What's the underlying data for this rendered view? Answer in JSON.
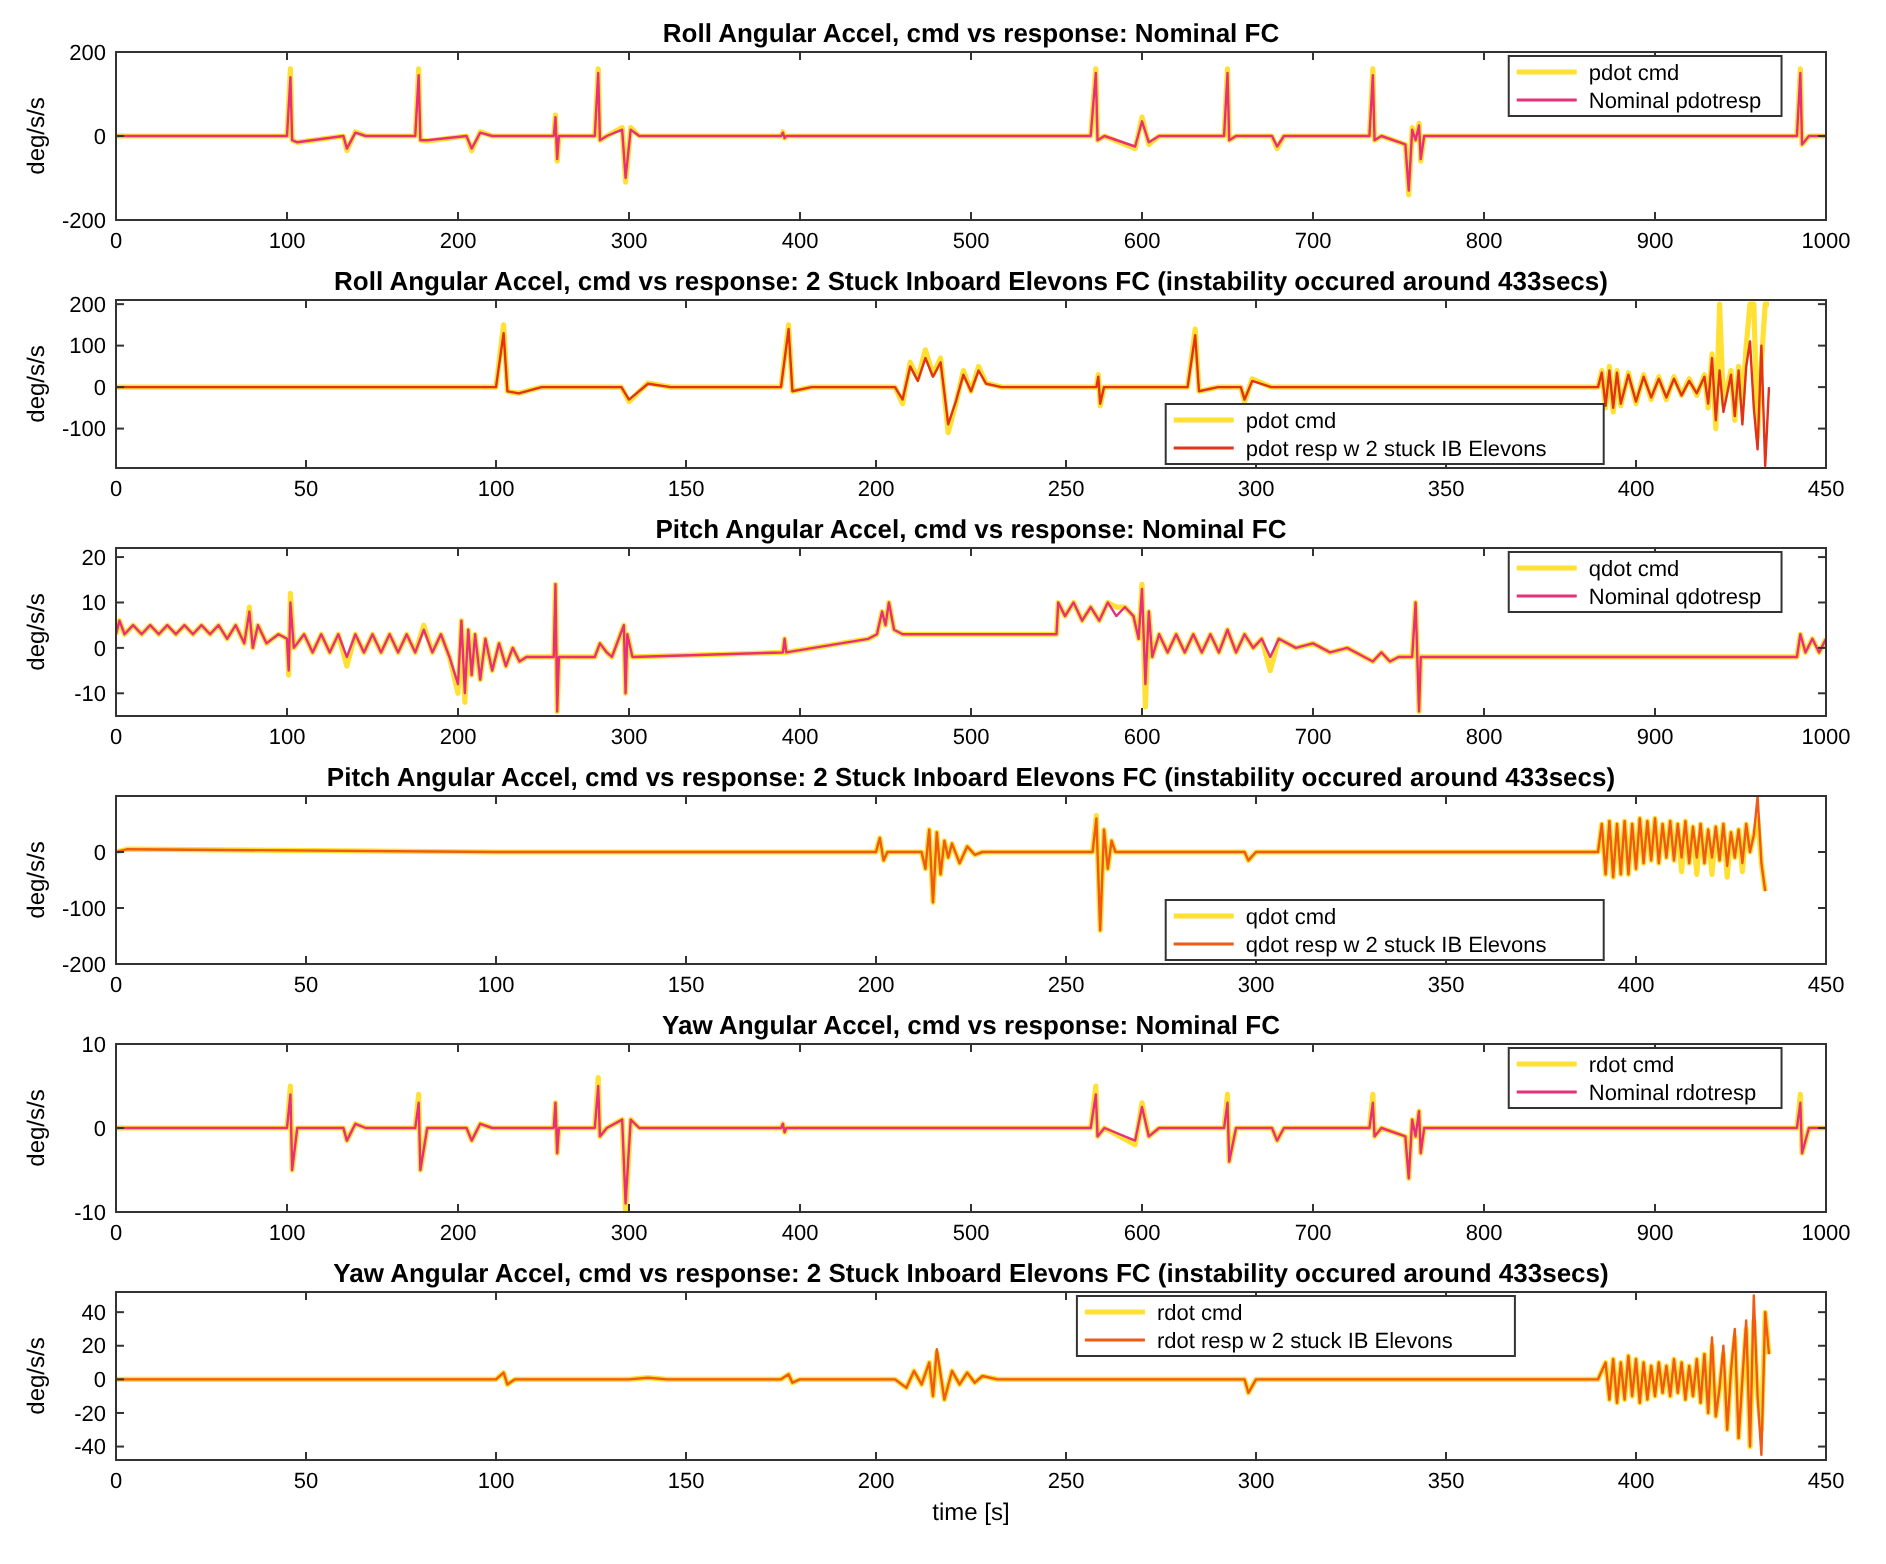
{
  "chart_data": [
    {
      "type": "line",
      "title": "Roll Angular Accel, cmd vs response: Nominal FC",
      "ylabel": "deg/s/s",
      "xlim": [
        0,
        1000
      ],
      "xticks": [
        0,
        100,
        200,
        300,
        400,
        500,
        600,
        700,
        800,
        900,
        1000
      ],
      "ylim": [
        -200,
        200
      ],
      "yticks": [
        -200,
        0,
        200
      ],
      "legend": "top right",
      "x": [
        0,
        100,
        102,
        103,
        106,
        133,
        135,
        140,
        146,
        175,
        177,
        178,
        182,
        205,
        208,
        213,
        220,
        256,
        257,
        258,
        259,
        280,
        282,
        283,
        287,
        296,
        298,
        301,
        306,
        389,
        390,
        391,
        392,
        570,
        573,
        574,
        578,
        596,
        600,
        604,
        610,
        648,
        650,
        651,
        655,
        676,
        679,
        683,
        733,
        735,
        736,
        740,
        754,
        756,
        758,
        760,
        762,
        763,
        765,
        983,
        985,
        986,
        990,
        1000
      ],
      "series": [
        {
          "name": "pdot cmd",
          "color": "#ffe033",
          "values": [
            0,
            0,
            160,
            -10,
            -15,
            0,
            -35,
            10,
            0,
            0,
            160,
            -10,
            -12,
            0,
            -35,
            10,
            0,
            0,
            50,
            -60,
            0,
            0,
            160,
            -10,
            0,
            20,
            -110,
            20,
            0,
            0,
            10,
            -5,
            0,
            0,
            160,
            -10,
            0,
            -30,
            45,
            -20,
            0,
            0,
            160,
            -10,
            0,
            0,
            -30,
            0,
            0,
            160,
            -10,
            0,
            -20,
            -140,
            20,
            -10,
            30,
            -60,
            0,
            0,
            160,
            -20,
            0,
            0
          ]
        },
        {
          "name": "Nominal pdotresp",
          "color": "#e8307a",
          "values": [
            0,
            0,
            140,
            -10,
            -15,
            0,
            -30,
            8,
            0,
            0,
            145,
            -10,
            -10,
            0,
            -30,
            8,
            0,
            0,
            45,
            -55,
            0,
            0,
            150,
            -10,
            0,
            15,
            -100,
            15,
            0,
            0,
            8,
            -5,
            0,
            0,
            150,
            -10,
            0,
            -25,
            35,
            -15,
            0,
            0,
            150,
            -10,
            0,
            0,
            -25,
            0,
            0,
            145,
            -10,
            0,
            -20,
            -130,
            15,
            -10,
            25,
            -55,
            0,
            0,
            150,
            -20,
            0,
            0
          ]
        }
      ]
    },
    {
      "type": "line",
      "title": "Roll Angular Accel, cmd vs response: 2 Stuck Inboard Elevons FC (instability occured around 433secs)",
      "ylabel": "deg/s/s",
      "xlim": [
        0,
        450
      ],
      "xticks": [
        0,
        50,
        100,
        150,
        200,
        250,
        300,
        350,
        400,
        450
      ],
      "ylim": [
        -195,
        210
      ],
      "yticks": [
        -100,
        0,
        100,
        200
      ],
      "legend": "bottom right",
      "x": [
        0,
        100,
        102,
        103,
        106,
        112,
        133,
        135,
        140,
        146,
        175,
        177,
        178,
        183,
        205,
        207,
        209,
        211,
        213,
        215,
        217,
        219,
        221,
        223,
        225,
        227,
        229,
        233,
        258,
        258.5,
        259,
        260,
        282,
        284,
        285,
        290,
        296,
        297,
        299,
        304,
        390,
        391,
        392,
        393,
        394,
        395,
        396,
        398,
        400,
        402,
        404,
        406,
        408,
        410,
        412,
        414,
        416,
        418,
        419,
        420,
        421,
        422,
        423,
        425,
        426,
        427,
        428,
        429,
        430,
        431,
        432,
        433,
        434,
        435
      ],
      "series": [
        {
          "name": "pdot cmd",
          "color": "#ffe033",
          "values": [
            0,
            0,
            150,
            -10,
            -15,
            0,
            0,
            -35,
            10,
            0,
            0,
            150,
            -10,
            0,
            0,
            -40,
            60,
            20,
            90,
            30,
            70,
            -110,
            -40,
            40,
            -10,
            50,
            10,
            0,
            0,
            30,
            -45,
            0,
            0,
            140,
            -10,
            0,
            0,
            -35,
            20,
            0,
            0,
            40,
            -50,
            50,
            -60,
            40,
            -45,
            35,
            -40,
            30,
            -30,
            25,
            -30,
            25,
            -20,
            20,
            -20,
            30,
            -50,
            80,
            -100,
            200,
            -40,
            40,
            -80,
            50,
            -40,
            100,
            200,
            200,
            -120,
            60,
            200,
            200
          ]
        },
        {
          "name": "pdot resp w 2 stuck IB Elevons",
          "color": "#e2321a",
          "values": [
            0,
            0,
            130,
            -10,
            -15,
            0,
            0,
            -30,
            8,
            0,
            0,
            140,
            -10,
            0,
            0,
            -30,
            50,
            15,
            70,
            25,
            60,
            -90,
            -35,
            30,
            -10,
            40,
            8,
            0,
            0,
            25,
            -40,
            0,
            0,
            125,
            -10,
            0,
            0,
            -30,
            15,
            0,
            0,
            35,
            -45,
            40,
            -50,
            35,
            -40,
            30,
            -35,
            25,
            -25,
            20,
            -25,
            20,
            -20,
            15,
            -15,
            25,
            -40,
            70,
            -80,
            40,
            -60,
            30,
            -70,
            40,
            -90,
            50,
            110,
            -50,
            -150,
            100,
            -190,
            0
          ]
        }
      ]
    },
    {
      "type": "line",
      "title": "Pitch Angular Accel, cmd vs response: Nominal FC",
      "ylabel": "deg/s/s",
      "xlim": [
        0,
        1000
      ],
      "xticks": [
        0,
        100,
        200,
        300,
        400,
        500,
        600,
        700,
        800,
        900,
        1000
      ],
      "ylim": [
        -15,
        22
      ],
      "yticks": [
        -10,
        0,
        10,
        20
      ],
      "legend": "top right",
      "x": [
        0,
        2,
        5,
        10,
        15,
        20,
        25,
        30,
        35,
        40,
        45,
        50,
        55,
        60,
        65,
        70,
        75,
        78,
        80,
        83,
        88,
        95,
        100,
        101,
        102,
        104,
        110,
        115,
        120,
        125,
        130,
        135,
        140,
        145,
        150,
        155,
        160,
        165,
        170,
        175,
        180,
        185,
        190,
        195,
        200,
        202,
        204,
        206,
        208,
        210,
        213,
        216,
        220,
        224,
        228,
        232,
        236,
        240,
        256,
        257,
        258,
        259,
        280,
        283,
        287,
        290,
        297,
        298,
        299,
        302,
        390,
        391,
        392,
        440,
        445,
        448,
        450,
        452,
        455,
        460,
        550,
        551,
        555,
        560,
        565,
        570,
        575,
        580,
        585,
        590,
        595,
        598,
        600,
        602,
        604,
        606,
        610,
        615,
        620,
        625,
        630,
        635,
        640,
        645,
        650,
        655,
        660,
        665,
        670,
        675,
        680,
        690,
        700,
        710,
        720,
        730,
        735,
        740,
        745,
        750,
        758,
        760,
        762,
        763,
        983,
        985,
        988,
        992,
        996,
        1000
      ],
      "series": [
        {
          "name": "qdot cmd",
          "color": "#ffe033",
          "values": [
            3,
            6,
            3,
            5,
            3,
            5,
            3,
            5,
            3,
            5,
            3,
            5,
            3,
            5,
            2,
            5,
            1,
            9,
            0,
            5,
            1,
            3,
            2,
            -6,
            12,
            0,
            3,
            -1,
            3,
            -1,
            3,
            -4,
            3,
            -1,
            3,
            -1,
            3,
            -1,
            3,
            -1,
            5,
            -1,
            3,
            -2,
            -10,
            6,
            -12,
            4,
            -6,
            3,
            -7,
            2,
            -5,
            1,
            -4,
            0,
            -3,
            -2,
            -2,
            14,
            -14,
            -2,
            -2,
            1,
            -1,
            -2,
            5,
            -10,
            3,
            -2,
            -1,
            2,
            -1,
            2,
            3,
            8,
            5,
            10,
            4,
            3,
            3,
            10,
            7,
            10,
            6,
            9,
            6,
            10,
            9,
            9,
            7,
            2,
            14,
            -13,
            8,
            -2,
            3,
            -1,
            3,
            -1,
            3,
            -1,
            3,
            -1,
            4,
            -1,
            3,
            0,
            2,
            -5,
            2,
            0,
            1,
            -1,
            0,
            -2,
            -3,
            -1,
            -3,
            -2,
            -2,
            10,
            -14,
            -2,
            -2,
            3,
            -1,
            2,
            -1,
            2
          ]
        },
        {
          "name": "Nominal qdotresp",
          "color": "#e8307a",
          "values": [
            3,
            6,
            3,
            5,
            3,
            5,
            3,
            5,
            3,
            5,
            3,
            5,
            3,
            5,
            2,
            5,
            1,
            8,
            0,
            5,
            1,
            3,
            2,
            -5,
            10,
            0,
            3,
            -1,
            3,
            -1,
            3,
            -2,
            3,
            -1,
            3,
            -1,
            3,
            -1,
            3,
            -1,
            4,
            -1,
            3,
            -2,
            -8,
            6,
            -10,
            4,
            -6,
            3,
            -7,
            2,
            -5,
            1,
            -4,
            0,
            -3,
            -2,
            -2,
            14,
            -14,
            -2,
            -2,
            1,
            -1,
            -2,
            5,
            -10,
            3,
            -2,
            -1,
            2,
            -1,
            2,
            3,
            8,
            5,
            10,
            4,
            3,
            3,
            10,
            7,
            10,
            6,
            9,
            6,
            10,
            7,
            9,
            7,
            2,
            13,
            -8,
            8,
            -2,
            3,
            -1,
            3,
            -1,
            3,
            -1,
            3,
            -1,
            4,
            -1,
            3,
            0,
            2,
            -2,
            2,
            0,
            1,
            -1,
            0,
            -2,
            -3,
            -1,
            -3,
            -2,
            -2,
            10,
            -14,
            -2,
            -2,
            3,
            -1,
            2,
            -1,
            2
          ]
        }
      ]
    },
    {
      "type": "line",
      "title": "Pitch Angular Accel, cmd vs response: 2 Stuck Inboard Elevons FC (instability occured around 433secs)",
      "ylabel": "deg/s/s",
      "xlim": [
        0,
        450
      ],
      "xticks": [
        0,
        50,
        100,
        150,
        200,
        250,
        300,
        350,
        400,
        450
      ],
      "ylim": [
        -200,
        100
      ],
      "yticks": [
        -200,
        -100,
        0
      ],
      "legend": "bottom right",
      "x": [
        0,
        3,
        100,
        200,
        201,
        202,
        203,
        212,
        213,
        214,
        215,
        216,
        217,
        218,
        219,
        220,
        222,
        224,
        226,
        228,
        257,
        258,
        259,
        260,
        261,
        262,
        263,
        297,
        298,
        300,
        390,
        391,
        392,
        393,
        394,
        395,
        396,
        397,
        398,
        399,
        400,
        401,
        402,
        403,
        404,
        405,
        406,
        407,
        408,
        409,
        410,
        411,
        412,
        413,
        414,
        415,
        416,
        417,
        418,
        419,
        420,
        421,
        422,
        423,
        424,
        425,
        426,
        427,
        428,
        429,
        430,
        431,
        432,
        433,
        434
      ],
      "series": [
        {
          "name": "qdot cmd",
          "color": "#ffe033",
          "values": [
            0,
            5,
            0,
            0,
            25,
            -15,
            0,
            0,
            -30,
            40,
            -90,
            35,
            -40,
            20,
            -10,
            15,
            -20,
            10,
            -5,
            0,
            0,
            65,
            -140,
            40,
            -30,
            20,
            0,
            0,
            -15,
            0,
            0,
            50,
            -40,
            55,
            -45,
            50,
            -40,
            55,
            -40,
            50,
            -30,
            60,
            -20,
            55,
            -15,
            60,
            -20,
            50,
            -10,
            55,
            -15,
            50,
            -35,
            55,
            -20,
            45,
            -40,
            50,
            -20,
            40,
            -40,
            45,
            -15,
            50,
            -45,
            35,
            -10,
            40,
            -35,
            50,
            0,
            30,
            60,
            -20,
            -70
          ]
        },
        {
          "name": "qdot resp w 2 stuck IB Elevons",
          "color": "#f05a14",
          "values": [
            0,
            5,
            0,
            0,
            25,
            -15,
            0,
            0,
            -30,
            40,
            -90,
            35,
            -40,
            20,
            -10,
            15,
            -20,
            10,
            -5,
            0,
            0,
            60,
            -140,
            40,
            -30,
            20,
            0,
            0,
            -15,
            0,
            0,
            50,
            -40,
            55,
            -45,
            50,
            -40,
            55,
            -40,
            50,
            -30,
            60,
            -20,
            55,
            -15,
            60,
            -20,
            50,
            -10,
            55,
            -15,
            50,
            -10,
            55,
            -20,
            45,
            -10,
            50,
            -20,
            40,
            -10,
            45,
            -15,
            50,
            -25,
            35,
            -10,
            40,
            -20,
            50,
            0,
            30,
            100,
            -20,
            -70
          ]
        }
      ]
    },
    {
      "type": "line",
      "title": "Yaw Angular Accel, cmd vs response: Nominal FC",
      "ylabel": "deg/s/s",
      "xlim": [
        0,
        1000
      ],
      "xticks": [
        0,
        100,
        200,
        300,
        400,
        500,
        600,
        700,
        800,
        900,
        1000
      ],
      "ylim": [
        -10,
        10
      ],
      "yticks": [
        -10,
        0,
        10
      ],
      "legend": "top right",
      "x": [
        0,
        100,
        102,
        103,
        106,
        133,
        135,
        140,
        146,
        175,
        177,
        178,
        182,
        205,
        208,
        213,
        220,
        256,
        257,
        258,
        259,
        280,
        282,
        283,
        287,
        296,
        298,
        301,
        306,
        389,
        390,
        391,
        392,
        570,
        573,
        574,
        578,
        596,
        600,
        604,
        610,
        648,
        650,
        651,
        655,
        676,
        679,
        683,
        733,
        735,
        736,
        740,
        754,
        756,
        758,
        760,
        762,
        763,
        765,
        983,
        985,
        986,
        990,
        1000
      ],
      "series": [
        {
          "name": "rdot cmd",
          "color": "#ffe033",
          "values": [
            0,
            0,
            5,
            -5,
            0,
            0,
            -1.5,
            0.5,
            0,
            0,
            4,
            -5,
            0,
            0,
            -1.5,
            0.5,
            0,
            0,
            3,
            -3,
            0,
            0,
            6,
            -1,
            0,
            1,
            -10,
            1,
            0,
            0,
            0.5,
            -0.5,
            0,
            0,
            5,
            -1,
            0,
            -2,
            3,
            -1,
            0,
            0,
            4,
            -4,
            0,
            0,
            -1.5,
            0,
            0,
            4,
            -1,
            0,
            -1,
            -6,
            1,
            -1,
            2,
            -3,
            0,
            0,
            4,
            -3,
            0,
            0
          ]
        },
        {
          "name": "Nominal rdotresp",
          "color": "#e8307a",
          "values": [
            0,
            0,
            4,
            -5,
            0,
            0,
            -1.5,
            0.5,
            0,
            0,
            3,
            -5,
            0,
            0,
            -1.5,
            0.5,
            0,
            0,
            3,
            -3,
            0,
            0,
            5,
            -1,
            0,
            1,
            -9,
            1,
            0,
            0,
            0.5,
            -0.5,
            0,
            0,
            4,
            -1,
            0,
            -1.5,
            2.5,
            -1,
            0,
            0,
            3,
            -4,
            0,
            0,
            -1.5,
            0,
            0,
            3,
            -1,
            0,
            -1,
            -6,
            1,
            -1,
            2,
            -3,
            0,
            0,
            3,
            -3,
            0,
            0
          ]
        }
      ]
    },
    {
      "type": "line",
      "title": "Yaw Angular Accel, cmd vs response: 2 Stuck Inboard Elevons FC (instability occured around 433secs)",
      "ylabel": "deg/s/s",
      "xlabel": "time [s]",
      "xlim": [
        0,
        450
      ],
      "xticks": [
        0,
        50,
        100,
        150,
        200,
        250,
        300,
        350,
        400,
        450
      ],
      "ylim": [
        -48,
        52
      ],
      "yticks": [
        -40,
        -20,
        0,
        20,
        40
      ],
      "legend": "top",
      "x": [
        0,
        100,
        102,
        103,
        105,
        135,
        140,
        145,
        175,
        177,
        178,
        180,
        205,
        208,
        210,
        212,
        214,
        215,
        216,
        218,
        220,
        222,
        224,
        226,
        228,
        232,
        297,
        298,
        300,
        390,
        392,
        393,
        394,
        395,
        396,
        397,
        398,
        399,
        400,
        401,
        402,
        403,
        404,
        405,
        406,
        407,
        408,
        409,
        410,
        411,
        412,
        413,
        414,
        415,
        416,
        417,
        418,
        419,
        420,
        421,
        422,
        423,
        424,
        425,
        426,
        427,
        428,
        429,
        430,
        431,
        432,
        433,
        434,
        435
      ],
      "series": [
        {
          "name": "rdot cmd",
          "color": "#ffe033",
          "values": [
            0,
            0,
            4,
            -3,
            0,
            0,
            1,
            0,
            0,
            3,
            -2,
            0,
            0,
            -5,
            5,
            -3,
            10,
            -10,
            16,
            -12,
            5,
            -3,
            4,
            -2,
            2,
            0,
            0,
            -8,
            0,
            0,
            10,
            -12,
            12,
            -14,
            10,
            -12,
            14,
            -10,
            12,
            -14,
            10,
            -12,
            8,
            -10,
            10,
            -8,
            8,
            -10,
            12,
            -8,
            10,
            -12,
            8,
            -10,
            12,
            -14,
            15,
            -20,
            20,
            -22,
            -5,
            15,
            -30,
            5,
            25,
            -35,
            0,
            30,
            -40,
            35,
            -10,
            -30,
            40,
            15
          ]
        },
        {
          "name": "rdot resp w 2 stuck IB Elevons",
          "color": "#f05a14",
          "values": [
            0,
            0,
            4,
            -3,
            0,
            0,
            1,
            0,
            0,
            3,
            -2,
            0,
            0,
            -5,
            5,
            -3,
            10,
            -10,
            18,
            -12,
            5,
            -3,
            4,
            -2,
            2,
            0,
            0,
            -8,
            0,
            0,
            10,
            -12,
            12,
            -14,
            10,
            -12,
            14,
            -10,
            12,
            -14,
            10,
            -12,
            8,
            -10,
            10,
            -8,
            8,
            -10,
            12,
            -8,
            10,
            -12,
            8,
            -10,
            12,
            -14,
            15,
            -20,
            25,
            -22,
            -5,
            20,
            -30,
            5,
            30,
            -35,
            0,
            35,
            -40,
            50,
            -10,
            -45,
            40,
            15
          ]
        }
      ]
    }
  ]
}
